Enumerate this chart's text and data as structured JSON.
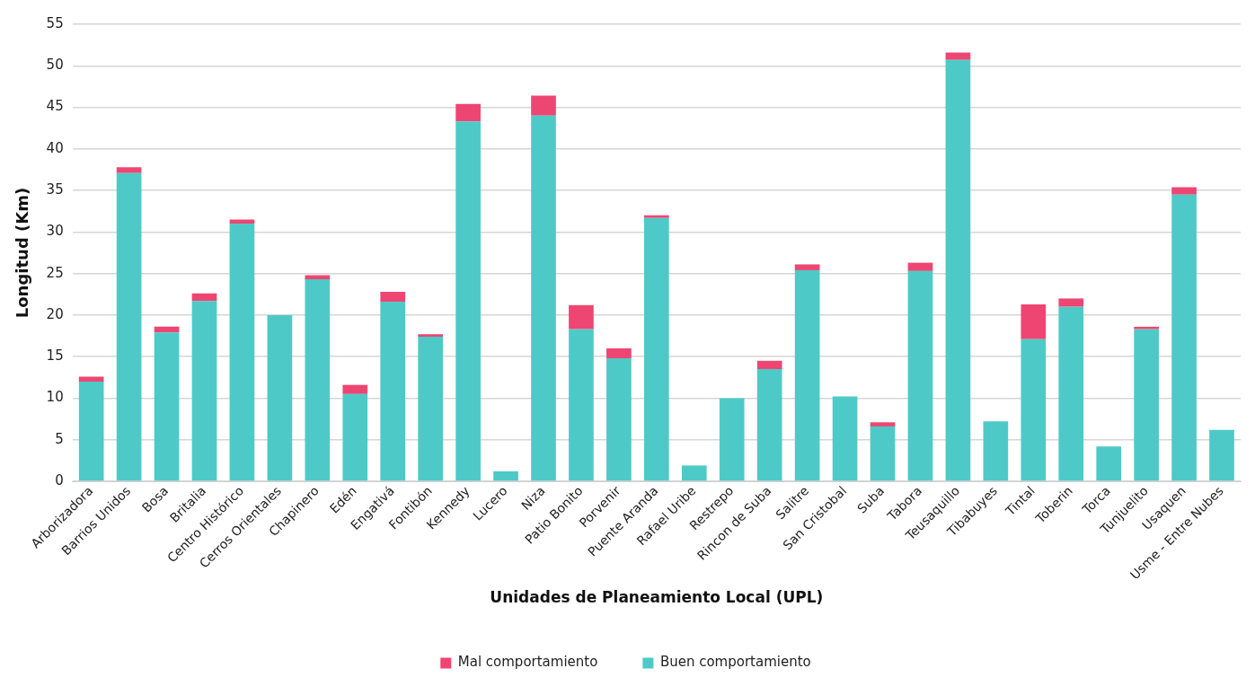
{
  "chart_data": {
    "type": "bar",
    "xlabel": "Unidades de Planeamiento Local (UPL)",
    "ylabel": "Longitud (Km)",
    "categories": [
      "Arborizadora",
      "Barrios Unidos",
      "Bosa",
      "Britalia",
      "Centro Histórico",
      "Cerros Orientales",
      "Chapinero",
      "Edén",
      "Engativá",
      "Fontibón",
      "Kennedy",
      "Lucero",
      "Niza",
      "Patio Bonito",
      "Porvenir",
      "Puente Aranda",
      "Rafael Uribe",
      "Restrepo",
      "Rincon de Suba",
      "Salitre",
      "San Cristobal",
      "Suba",
      "Tabora",
      "Teusaquillo",
      "Tibabuyes",
      "Tintal",
      "Toberin",
      "Torca",
      "Tunjuelito",
      "Usaquen",
      "Usme - Entre Nubes"
    ],
    "series": [
      {
        "name": "Buen comportamiento",
        "color": "#4dcac8",
        "values": [
          12.0,
          37.1,
          17.9,
          21.7,
          31.0,
          20.0,
          24.3,
          10.5,
          21.6,
          17.4,
          43.3,
          1.2,
          44.0,
          18.3,
          14.8,
          31.7,
          1.9,
          10.0,
          13.5,
          25.4,
          10.2,
          6.6,
          25.3,
          50.7,
          7.2,
          17.1,
          21.0,
          4.2,
          18.3,
          34.5,
          6.2
        ]
      },
      {
        "name": "Mal comportamiento",
        "color": "#ee4672",
        "values": [
          0.6,
          0.7,
          0.7,
          0.9,
          0.5,
          0,
          0.5,
          1.1,
          1.2,
          0.3,
          2.1,
          0,
          2.4,
          2.9,
          1.2,
          0.3,
          0,
          0,
          1.0,
          0.7,
          0,
          0.5,
          1.0,
          0.9,
          0,
          4.2,
          1.0,
          0,
          0.3,
          0.9,
          0
        ]
      }
    ],
    "stacked": true,
    "ylim": [
      0,
      55
    ],
    "yticks": [
      0,
      5,
      10,
      15,
      20,
      25,
      30,
      35,
      40,
      45,
      50,
      55
    ],
    "grid": "y",
    "legend": "bottom"
  }
}
